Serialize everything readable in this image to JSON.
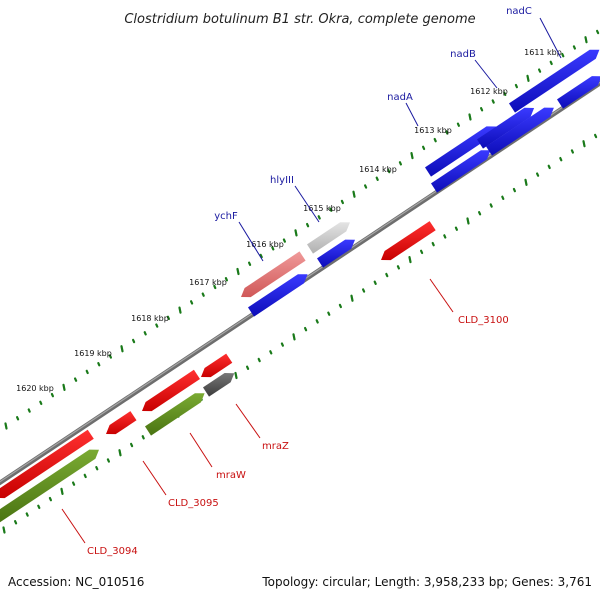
{
  "title": "Clostridium botulinum B1 str. Okra, complete genome",
  "footer": {
    "accession": "Accession: NC_010516",
    "topology": "Topology: circular; Length: 3,958,233 bp; Genes: 3,761"
  },
  "colors": {
    "backbone": "#888888",
    "forward_gene": "#1212d8",
    "reverse_gene": "#e01010",
    "rna_gene": "#d46a6a",
    "other_gene": "#c8c8c8",
    "dark_gene": "#555555",
    "cds_gene": "#5a8a1e",
    "tick": "#1a7a1a",
    "forward_label": "#1a1aa0",
    "reverse_label": "#c81010"
  },
  "ticks": [
    "1611 kbp",
    "1612 kbp",
    "1613 kbp",
    "1614 kbp",
    "1615 kbp",
    "1616 kbp",
    "1617 kbp",
    "1618 kbp",
    "1619 kbp",
    "1620 kbp"
  ],
  "labels": [
    {
      "id": "nadC",
      "text": "nadC",
      "strand": "forward"
    },
    {
      "id": "nadB",
      "text": "nadB",
      "strand": "forward"
    },
    {
      "id": "nadA",
      "text": "nadA",
      "strand": "forward"
    },
    {
      "id": "hlyIII",
      "text": "hlyIII",
      "strand": "forward"
    },
    {
      "id": "ychF",
      "text": "ychF",
      "strand": "forward"
    },
    {
      "id": "CLD_3100",
      "text": "CLD_3100",
      "strand": "reverse"
    },
    {
      "id": "mraZ",
      "text": "mraZ",
      "strand": "reverse"
    },
    {
      "id": "mraW",
      "text": "mraW",
      "strand": "reverse"
    },
    {
      "id": "CLD_3095",
      "text": "CLD_3095",
      "strand": "reverse"
    },
    {
      "id": "CLD_3094",
      "text": "CLD_3094",
      "strand": "reverse"
    }
  ]
}
